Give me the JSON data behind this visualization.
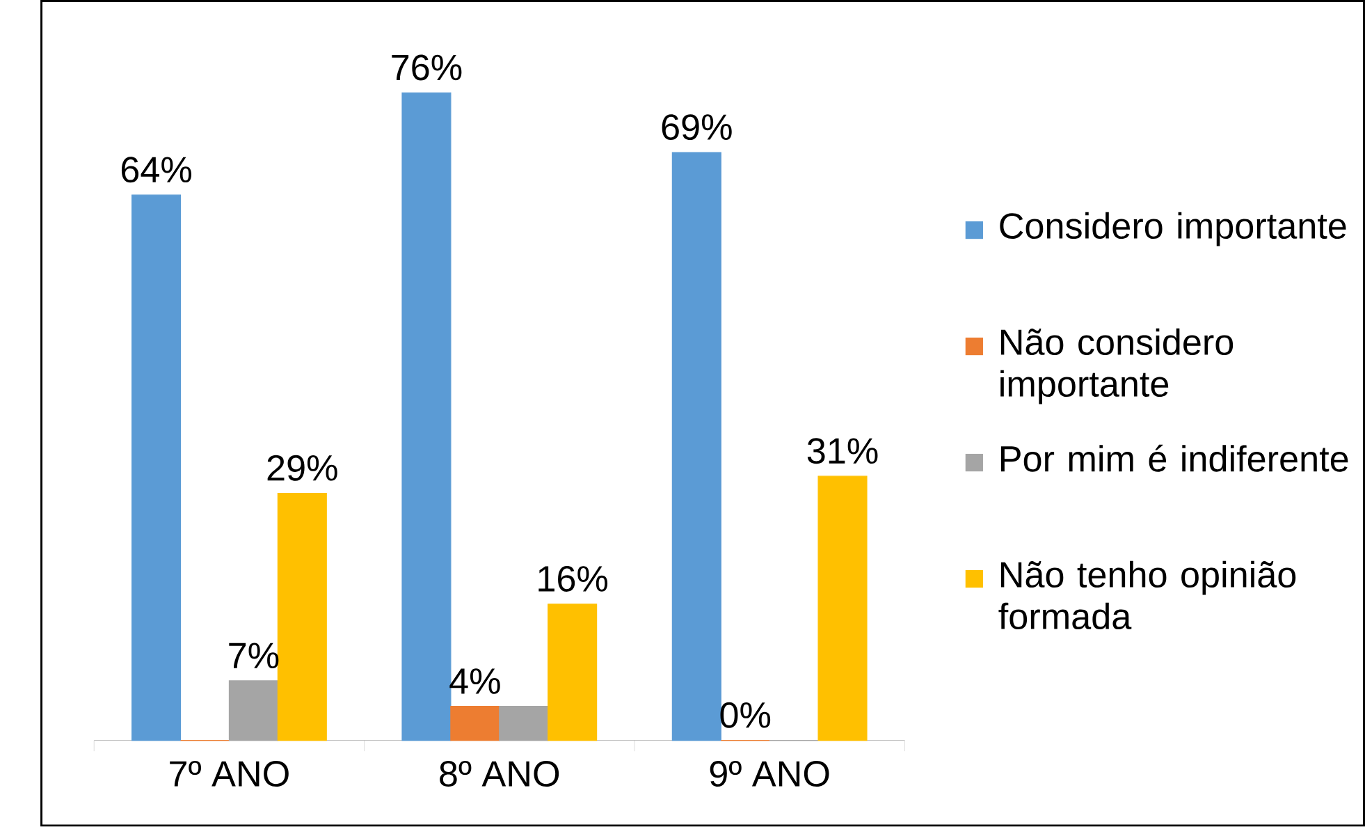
{
  "chart_data": {
    "type": "bar",
    "categories": [
      "7º ANO",
      "8º ANO",
      "9º ANO"
    ],
    "series": [
      {
        "name": "Considero importante",
        "color": "#5b9bd5",
        "values": [
          64,
          76,
          69
        ],
        "value_labels": [
          "64%",
          "76%",
          "69%"
        ]
      },
      {
        "name": "Não considero importante",
        "color": "#ed7d31",
        "values": [
          0,
          4,
          0
        ],
        "value_labels": [
          null,
          "4%",
          "0%"
        ]
      },
      {
        "name": "Por mim é indiferente",
        "color": "#a5a5a5",
        "values": [
          7,
          4,
          0
        ],
        "value_labels": [
          "7%",
          null,
          null
        ]
      },
      {
        "name": "Não tenho opinião formada",
        "color": "#ffc000",
        "values": [
          29,
          16,
          31
        ],
        "value_labels": [
          "29%",
          "16%",
          "31%"
        ]
      }
    ],
    "grid": false,
    "legend": "right"
  }
}
